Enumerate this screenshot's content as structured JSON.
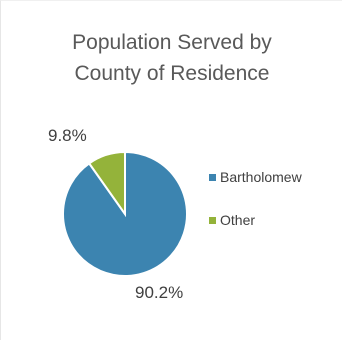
{
  "chart_data": {
    "type": "pie",
    "title_lines": [
      "Population Served by",
      "County of Residence"
    ],
    "categories": [
      "Bartholomew",
      "Other"
    ],
    "values": [
      90.2,
      9.8
    ],
    "data_labels": [
      "90.2%",
      "9.8%"
    ],
    "colors": [
      "#3c84b0",
      "#94b33a"
    ],
    "legend_position": "right"
  }
}
